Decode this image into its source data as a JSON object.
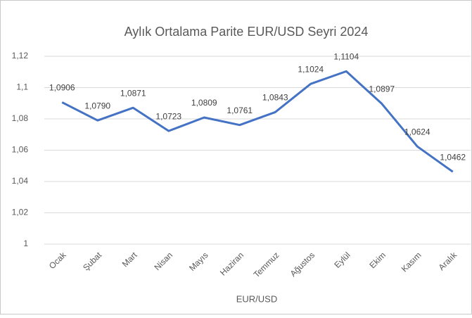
{
  "chart_data": {
    "type": "line",
    "title": "Aylık Ortalama Parite EUR/USD Seyri 2024",
    "x_label": "EUR/USD",
    "categories": [
      "Ocak",
      "Şubat",
      "Mart",
      "Nisan",
      "Mayıs",
      "Haziran",
      "Temmuz",
      "Ağustos",
      "Eylül",
      "Ekim",
      "Kasım",
      "Aralık"
    ],
    "series": [
      {
        "name": "EUR/USD",
        "color": "#4472c4",
        "values": [
          1.0906,
          1.079,
          1.0871,
          1.0723,
          1.0809,
          1.0761,
          1.0843,
          1.1024,
          1.1104,
          1.0897,
          1.0624,
          1.0462
        ],
        "value_labels": [
          "1,0906",
          "1,0790",
          "1,0871",
          "1,0723",
          "1,0809",
          "1,0761",
          "1,0843",
          "1,1024",
          "1,1104",
          "1,0897",
          "1,0624",
          "1,0462"
        ]
      }
    ],
    "ylim": [
      1,
      1.12
    ],
    "yticks": [
      1,
      {
        "value": 1.02,
        "label": "1,02"
      },
      {
        "value": 1.04,
        "label": "1,04"
      },
      {
        "value": 1.06,
        "label": "1,06"
      },
      {
        "value": 1.08,
        "label": "1,08"
      },
      {
        "value": 1.1,
        "label": "1,1"
      },
      {
        "value": 1.12,
        "label": "1,12"
      }
    ],
    "grid": true
  }
}
